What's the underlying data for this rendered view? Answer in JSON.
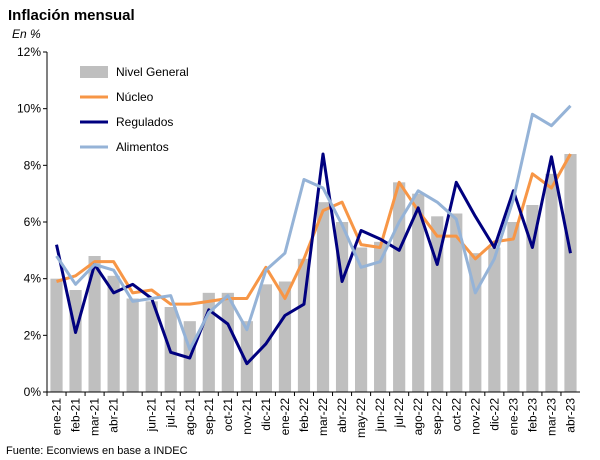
{
  "chart_data": {
    "type": "bar_line",
    "title": "Inflación  mensual",
    "subtitle": "En %",
    "source": "Fuente: Econviews en base a INDEC",
    "categories": [
      "ene-21",
      "feb-21",
      "mar-21",
      "abr-21",
      null,
      "jun-21",
      "jul-21",
      "ago-21",
      "sep-21",
      "oct-21",
      "nov-21",
      "dic-21",
      "ene-22",
      "feb-22",
      "mar-22",
      "abr-22",
      "may-22",
      "jun-22",
      "jul-22",
      "ago-22",
      "sep-22",
      "oct-22",
      "nov-22",
      "dic-22",
      "ene-23",
      "feb-23",
      "mar-23",
      "abr-23"
    ],
    "series": [
      {
        "name": "Nivel General",
        "type": "bar",
        "color": "#bfbfbf",
        "values": [
          4.0,
          3.6,
          4.8,
          4.1,
          3.3,
          3.2,
          3.0,
          2.5,
          3.5,
          3.5,
          2.5,
          3.8,
          3.9,
          4.7,
          6.7,
          6.0,
          5.1,
          5.3,
          7.4,
          7.0,
          6.2,
          6.3,
          4.9,
          5.1,
          6.0,
          6.6,
          7.7,
          8.4
        ]
      },
      {
        "name": "Núcleo",
        "type": "line",
        "color": "#f79646",
        "values": [
          3.9,
          4.1,
          4.6,
          4.6,
          3.5,
          3.6,
          3.1,
          3.1,
          3.2,
          3.3,
          3.3,
          4.4,
          3.3,
          4.7,
          6.4,
          6.7,
          5.2,
          5.1,
          7.4,
          6.4,
          5.5,
          5.5,
          4.7,
          5.3,
          5.4,
          7.7,
          7.2,
          8.4
        ]
      },
      {
        "name": "Regulados",
        "type": "line",
        "color": "#00007f",
        "values": [
          5.2,
          2.1,
          4.5,
          3.5,
          3.8,
          3.3,
          1.4,
          1.2,
          2.9,
          2.4,
          1.0,
          1.7,
          2.7,
          3.1,
          8.4,
          3.9,
          5.7,
          5.4,
          5.0,
          6.5,
          4.5,
          7.4,
          6.2,
          5.1,
          7.1,
          5.1,
          8.3,
          4.9
        ]
      },
      {
        "name": "Alimentos",
        "type": "line",
        "color": "#95b3d7",
        "values": [
          4.8,
          3.8,
          4.5,
          4.3,
          3.2,
          3.3,
          3.4,
          1.5,
          2.8,
          3.4,
          2.2,
          4.3,
          4.9,
          7.5,
          7.2,
          5.9,
          4.4,
          4.6,
          6.0,
          7.1,
          6.7,
          6.1,
          3.5,
          4.7,
          6.8,
          9.8,
          9.4,
          10.1
        ]
      }
    ],
    "ylim": [
      0,
      12
    ],
    "yticks": [
      {
        "value": 0,
        "label": "0%"
      },
      {
        "value": 2,
        "label": "2%"
      },
      {
        "value": 4,
        "label": "4%"
      },
      {
        "value": 6,
        "label": "6%"
      },
      {
        "value": 8,
        "label": "8%"
      },
      {
        "value": 10,
        "label": "10%"
      },
      {
        "value": 12,
        "label": "12%"
      }
    ],
    "legend": "upper left"
  }
}
